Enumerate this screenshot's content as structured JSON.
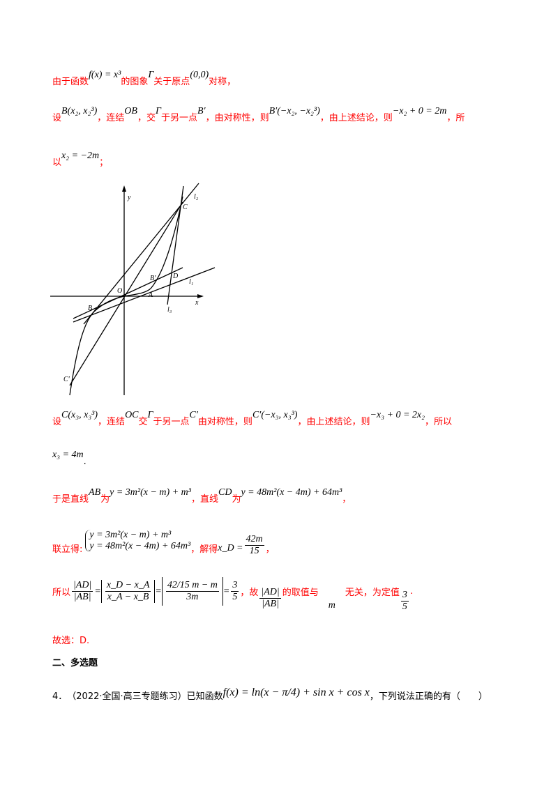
{
  "colors": {
    "answer_text": "#ff0000",
    "body_text": "#000000"
  },
  "p1": {
    "t1": "由于函数",
    "m1": "f(x) = x³",
    "t2": "的图象",
    "m2": "Γ",
    "t3": "关于原点",
    "m3": "(0,0)",
    "t4": "对称，"
  },
  "p2": {
    "t1": "设",
    "m1": "B(x₂, x₂³)",
    "t2": "，连结",
    "m2": "OB",
    "t3": "，交",
    "m3": "Γ",
    "t4": "于另一点",
    "m4": "B′",
    "t5": "，由对称性，则",
    "m5": "B′(−x₂, −x₂³)",
    "t6": "，由上述结论，则",
    "m6": "−x₂ + 0 = 2m",
    "t7": "，所"
  },
  "p3": {
    "t1": "以",
    "m1": "x₂ = −2m",
    "t2": "；"
  },
  "figure": {
    "labels": {
      "y": "y",
      "x": "x",
      "O": "O",
      "B": "B",
      "B_prime": "B′",
      "A": "A",
      "D": "D",
      "C": "C",
      "C_prime": "C′",
      "l1": "l₁",
      "l2": "l₂",
      "l3": "l₃"
    }
  },
  "p4": {
    "t1": "设",
    "m1": "C(x₃, x₃³)",
    "t2": "，连结",
    "m2": "OC",
    "t3": "交",
    "m3": "Γ",
    "t4": "于另一点",
    "m4": "C′",
    "t5": "由对称性，则",
    "m5": "C′(−x₃, x₃³)",
    "t6": "，由上述结论，则",
    "m6": "−x₃ + 0 = 2x₂",
    "t7": "，所以"
  },
  "p5": {
    "m1": "x₃ = 4m",
    "t1": "."
  },
  "p6": {
    "t1": "于是直线",
    "m1": "AB",
    "t2": "为",
    "m2": "y = 3m²(x − m) + m³",
    "t3": "，直线",
    "m3": "CD",
    "t4": "为",
    "m4": "y = 48m²(x − 4m) + 64m³",
    "t5": "，"
  },
  "p7": {
    "t1": "联立得:",
    "eq1": "y = 3m²(x − m) + m³",
    "eq2": "y = 48m²(x − 4m) + 64m³",
    "t2": "，解得",
    "m1": "x_D =",
    "num": "42m",
    "den": "15",
    "t3": "，"
  },
  "p8": {
    "t1": "所以",
    "f1n": "|AD|",
    "f1d": "|AB|",
    "eq": "=",
    "f2n": "x_D − x_A",
    "f2d": "x_A − x_B",
    "f3n": "42/15 m − m",
    "f3d": "3m",
    "f4n": "3",
    "f4d": "5",
    "t2": "，故",
    "f5n": "|AD|",
    "f5d": "|AB|",
    "t3": "的取值与",
    "m1": "m",
    "t4": "无关，为定值",
    "f6n": "3",
    "f6d": "5",
    "t5": "."
  },
  "p9": {
    "t1": "故选：D."
  },
  "section": {
    "title": "二、多选题"
  },
  "q4": {
    "num": "4．",
    "source": "（2022·全国·高三专题练习）已知函数",
    "formula": "f(x) = ln(x − π/4) + sin x + cos x",
    "tail": "，下列说法正确的有（　　）"
  }
}
